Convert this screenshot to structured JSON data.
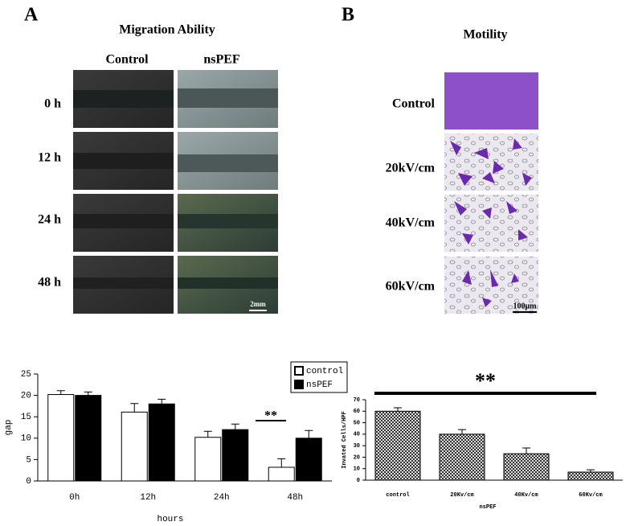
{
  "panel_a": {
    "label": "A",
    "title": "Migration Ability",
    "columns": [
      "Control",
      "nsPEF"
    ],
    "rows": [
      "0 h",
      "12 h",
      "24 h",
      "48 h"
    ],
    "scale_bar": "2mm"
  },
  "panel_b": {
    "label": "B",
    "title": "Motility",
    "rows": [
      "Control",
      "20kV/cm",
      "40kV/cm",
      "60kV/cm"
    ],
    "scale_bar": "100μm"
  },
  "chart_data": [
    {
      "type": "bar",
      "categories": [
        "0h",
        "12h",
        "24h",
        "48h"
      ],
      "xlabel": "hours",
      "ylabel": "gap",
      "series": [
        {
          "name": "control",
          "color": "#ffffff",
          "values": [
            20.2,
            16.1,
            10.2,
            3.2
          ],
          "errors": [
            0.9,
            2.0,
            1.4,
            2.0
          ]
        },
        {
          "name": "nsPEF",
          "color": "#000000",
          "values": [
            20.0,
            18.0,
            12.0,
            10.0
          ],
          "errors": [
            0.8,
            1.1,
            1.3,
            1.8
          ]
        }
      ],
      "ylim": [
        0,
        25
      ],
      "yticks": [
        0,
        5,
        10,
        15,
        20,
        25
      ],
      "legend": "upper right",
      "annotation": "**"
    },
    {
      "type": "bar",
      "categories": [
        "control",
        "20Kv/cm",
        "40Kv/cm",
        "60Kv/cm"
      ],
      "xlabel": "nsPEF",
      "ylabel": "Invated Cells/HPF",
      "series": [
        {
          "color": "#555555",
          "fill_pattern": "checker",
          "values": [
            60,
            40,
            23,
            7
          ],
          "errors": [
            3,
            4,
            5,
            2
          ]
        }
      ],
      "ylim": [
        0,
        70
      ],
      "yticks": [
        0,
        10,
        20,
        30,
        40,
        50,
        60,
        70
      ],
      "annotation": "**"
    }
  ]
}
